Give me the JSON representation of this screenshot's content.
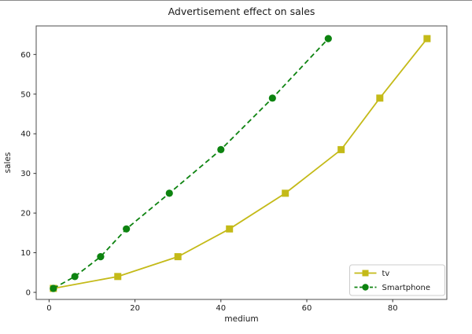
{
  "chart_data": {
    "type": "line",
    "title": "Advertisement effect on sales",
    "xlabel": "medium",
    "ylabel": "sales",
    "xlim": [
      -3.0,
      92.6
    ],
    "ylim": [
      -1.78,
      67.2
    ],
    "xticks": [
      0,
      20,
      40,
      60,
      80
    ],
    "yticks": [
      0,
      10,
      20,
      30,
      40,
      50,
      60
    ],
    "grid": false,
    "legend": {
      "position": "lower right",
      "entries": [
        "tv",
        "Smartphone"
      ]
    },
    "series": [
      {
        "name": "tv",
        "color": "#c4ba18",
        "linestyle": "solid",
        "marker": "square",
        "x": [
          1,
          16,
          30,
          42,
          55,
          68,
          77,
          88
        ],
        "y": [
          1,
          4,
          9,
          16,
          25,
          36,
          49,
          64
        ]
      },
      {
        "name": "Smartphone",
        "color": "#0d8310",
        "linestyle": "dashed",
        "marker": "circle",
        "x": [
          1,
          6,
          12,
          18,
          28,
          40,
          52,
          65
        ],
        "y": [
          1,
          4,
          9,
          16,
          25,
          36,
          49,
          64
        ]
      }
    ]
  },
  "colors": {
    "background": "#ffffff",
    "spine": "#4d4d4d",
    "tick": "#333333",
    "text": "#1a1a1a",
    "legend_border": "#cccccc",
    "legend_fill": "rgba(255,255,255,0.85)"
  }
}
